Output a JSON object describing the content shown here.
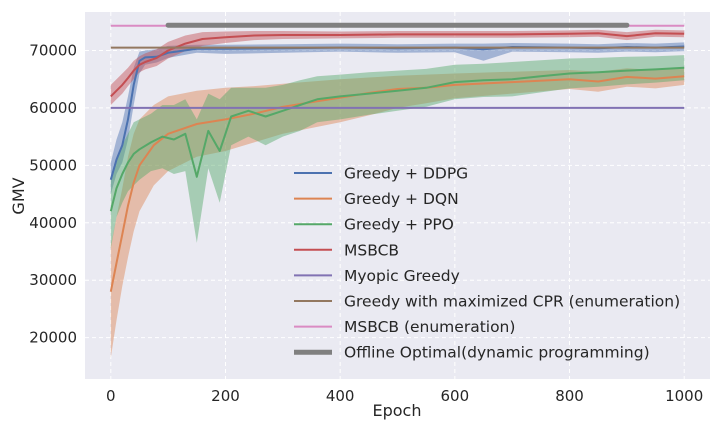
{
  "chart_data": {
    "type": "line",
    "title": "",
    "xlabel": "Epoch",
    "ylabel": "GMV",
    "xlim": [
      -45,
      1045
    ],
    "ylim": [
      12800,
      76700
    ],
    "xticks": [
      0,
      200,
      400,
      600,
      800,
      1000
    ],
    "yticks": [
      20000,
      30000,
      40000,
      50000,
      60000,
      70000
    ],
    "grid": true,
    "legend_position": "center-right",
    "series": [
      {
        "name": "Greedy + DDPG",
        "color": "#4c72b0",
        "x": [
          0,
          10,
          20,
          30,
          40,
          50,
          60,
          80,
          100,
          150,
          200,
          300,
          400,
          500,
          600,
          650,
          700,
          800,
          850,
          900,
          950,
          1000
        ],
        "y": [
          47500,
          51000,
          53500,
          58000,
          64000,
          68200,
          68800,
          68900,
          69600,
          70300,
          70300,
          70400,
          70500,
          70400,
          70500,
          70200,
          70600,
          70500,
          70400,
          70600,
          70500,
          70700
        ],
        "upper": [
          50500,
          54500,
          57500,
          62000,
          67000,
          69800,
          70000,
          70200,
          70800,
          71000,
          71000,
          71100,
          71200,
          71100,
          71200,
          71200,
          71300,
          71200,
          71100,
          71300,
          71200,
          71400
        ],
        "lower": [
          45000,
          48500,
          50500,
          54500,
          60500,
          66000,
          67500,
          67900,
          68700,
          69600,
          69400,
          69600,
          69800,
          69600,
          69700,
          68200,
          69800,
          69700,
          69600,
          69800,
          69700,
          69900
        ]
      },
      {
        "name": "Greedy + DQN",
        "color": "#dd8452",
        "x": [
          0,
          10,
          20,
          30,
          40,
          50,
          75,
          100,
          150,
          200,
          250,
          300,
          350,
          400,
          450,
          500,
          550,
          600,
          700,
          800,
          850,
          900,
          950,
          1000
        ],
        "y": [
          28000,
          33000,
          38000,
          43000,
          47000,
          50000,
          53500,
          55500,
          57200,
          58000,
          59000,
          60200,
          61000,
          61800,
          62600,
          63300,
          63500,
          64000,
          64500,
          65000,
          64600,
          65400,
          65100,
          65500
        ],
        "upper": [
          36000,
          41000,
          46000,
          51500,
          55500,
          58000,
          60500,
          62000,
          63000,
          63500,
          63800,
          64200,
          64600,
          65000,
          65300,
          65600,
          65800,
          66000,
          66300,
          66600,
          66300,
          66900,
          66600,
          67000
        ],
        "lower": [
          16500,
          23000,
          29000,
          34000,
          38500,
          42000,
          46500,
          49000,
          51500,
          52500,
          54000,
          55500,
          56500,
          57500,
          58700,
          60000,
          60800,
          61700,
          62500,
          63300,
          62800,
          63700,
          63400,
          64000
        ]
      },
      {
        "name": "Greedy + PPO",
        "color": "#55a868",
        "x": [
          0,
          10,
          20,
          30,
          40,
          50,
          70,
          90,
          110,
          130,
          150,
          170,
          190,
          210,
          240,
          270,
          300,
          330,
          360,
          400,
          450,
          500,
          550,
          600,
          650,
          700,
          750,
          800,
          850,
          900,
          950,
          1000
        ],
        "y": [
          42000,
          46000,
          48500,
          50500,
          52000,
          52800,
          54000,
          55000,
          54500,
          55500,
          48000,
          56000,
          52500,
          58500,
          59500,
          58500,
          59500,
          60500,
          61500,
          62000,
          62500,
          63000,
          63500,
          64500,
          64800,
          65000,
          65500,
          66000,
          66200,
          66500,
          66700,
          67000
        ],
        "upper": [
          47500,
          51000,
          53500,
          55500,
          57500,
          58000,
          59000,
          60500,
          60500,
          61500,
          58000,
          62500,
          61500,
          63500,
          63500,
          63500,
          64000,
          64800,
          65500,
          65800,
          66200,
          66500,
          66800,
          67500,
          67700,
          68000,
          68300,
          68600,
          68700,
          68900,
          69000,
          69200
        ],
        "lower": [
          35500,
          41000,
          43500,
          45500,
          46500,
          47500,
          49000,
          49500,
          48500,
          49000,
          36500,
          49500,
          43500,
          53500,
          55000,
          53500,
          55000,
          56000,
          57500,
          58000,
          58800,
          59500,
          60200,
          61500,
          61900,
          62000,
          62700,
          63400,
          63700,
          64100,
          64400,
          64800
        ]
      },
      {
        "name": "MSBCB",
        "color": "#c44e52",
        "x": [
          0,
          10,
          20,
          30,
          40,
          50,
          60,
          80,
          100,
          130,
          160,
          200,
          250,
          300,
          400,
          500,
          600,
          700,
          800,
          850,
          900,
          950,
          1000
        ],
        "y": [
          62000,
          63000,
          64000,
          65200,
          66500,
          67500,
          68000,
          68700,
          70000,
          71200,
          72000,
          72300,
          72600,
          72700,
          72700,
          72800,
          72800,
          72800,
          72900,
          73000,
          72500,
          73000,
          72900
        ],
        "upper": [
          64000,
          65000,
          66000,
          67000,
          68200,
          69000,
          69500,
          70200,
          71500,
          72600,
          73200,
          73300,
          73400,
          73400,
          73300,
          73400,
          73400,
          73400,
          73500,
          73600,
          73200,
          73600,
          73500
        ],
        "lower": [
          60500,
          61500,
          62500,
          63800,
          65000,
          66200,
          66700,
          67300,
          68600,
          69900,
          70800,
          71300,
          71800,
          72000,
          72100,
          72200,
          72200,
          72200,
          72300,
          72400,
          71800,
          72400,
          72300
        ]
      },
      {
        "name": "Myopic Greedy",
        "color": "#8172b3",
        "x": [
          0,
          1000
        ],
        "y": [
          60000,
          60000
        ]
      },
      {
        "name": "Greedy with maximized CPR (enumeration)",
        "color": "#937860",
        "x": [
          0,
          1000
        ],
        "y": [
          70500,
          70500
        ]
      },
      {
        "name": "MSBCB (enumeration)",
        "color": "#da8bc3",
        "x": [
          0,
          1000
        ],
        "y": [
          74300,
          74300
        ]
      },
      {
        "name": "Offline Optimal(dynamic programming)",
        "color": "#808080",
        "x": [
          100,
          900
        ],
        "y": [
          74400,
          74400
        ],
        "thick": true
      }
    ]
  }
}
